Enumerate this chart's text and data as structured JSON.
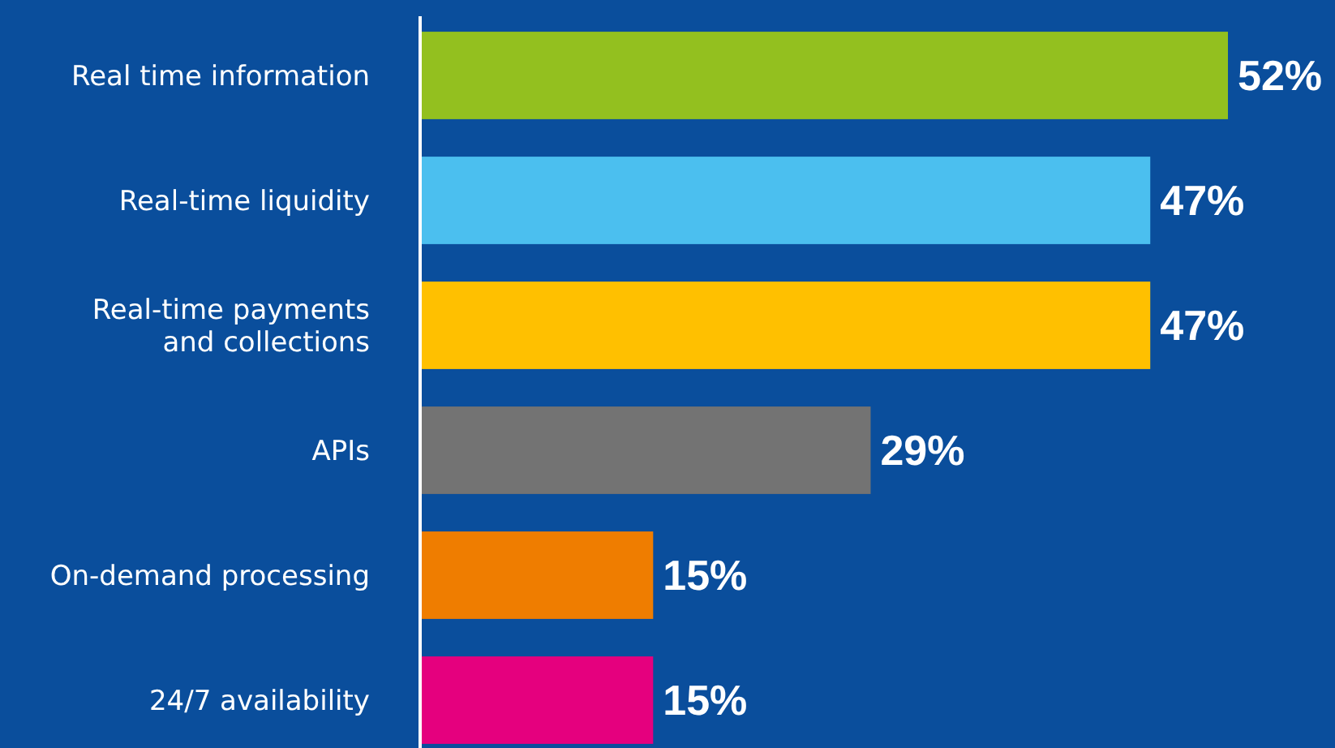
{
  "chart_data": {
    "type": "bar",
    "orientation": "horizontal",
    "categories": [
      "Real time information",
      "Real-time liquidity",
      "Real-time payments and collections",
      "APIs",
      "On-demand processing",
      "24/7 availability"
    ],
    "values": [
      52,
      47,
      47,
      29,
      15,
      15
    ],
    "colors": [
      "#93c01f",
      "#4bbfef",
      "#ffc000",
      "#737373",
      "#ef7d00",
      "#e5007e"
    ],
    "value_labels": [
      "52%",
      "47%",
      "47%",
      "29%",
      "15%",
      "15%"
    ]
  }
}
